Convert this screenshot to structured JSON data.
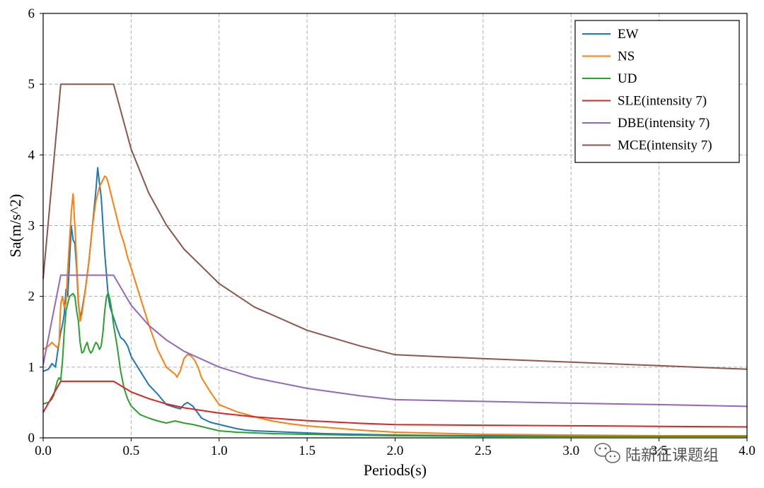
{
  "chart_data": {
    "type": "line",
    "xlabel": "Periods(s)",
    "ylabel": "Sa(m/s^2)",
    "xlim": [
      0,
      4.0
    ],
    "ylim": [
      0,
      6
    ],
    "xticks": [
      "0.0",
      "0.5",
      "1.0",
      "1.5",
      "2.0",
      "2.5",
      "3.0",
      "3.5",
      "4.0"
    ],
    "yticks": [
      "0",
      "1",
      "2",
      "3",
      "4",
      "5",
      "6"
    ],
    "grid": true,
    "legend_position": "top-right",
    "series": [
      {
        "name": "EW",
        "color": "#1f77b4",
        "x": [
          0.0,
          0.03,
          0.05,
          0.07,
          0.09,
          0.1,
          0.11,
          0.12,
          0.13,
          0.14,
          0.15,
          0.16,
          0.17,
          0.18,
          0.19,
          0.2,
          0.21,
          0.22,
          0.24,
          0.26,
          0.28,
          0.3,
          0.31,
          0.32,
          0.33,
          0.34,
          0.35,
          0.36,
          0.37,
          0.38,
          0.4,
          0.42,
          0.44,
          0.46,
          0.48,
          0.5,
          0.55,
          0.6,
          0.65,
          0.7,
          0.75,
          0.78,
          0.8,
          0.82,
          0.85,
          0.9,
          0.95,
          1.0,
          1.05,
          1.1,
          1.15,
          1.2,
          1.3,
          1.4,
          1.5,
          1.6,
          1.8,
          2.0,
          2.5,
          3.0,
          3.5,
          4.0
        ],
        "y": [
          0.94,
          0.97,
          1.05,
          1.0,
          1.35,
          1.5,
          1.6,
          1.75,
          2.1,
          2.0,
          2.5,
          3.0,
          2.8,
          2.75,
          2.4,
          1.9,
          1.7,
          1.8,
          2.1,
          2.5,
          3.0,
          3.5,
          3.82,
          3.6,
          3.4,
          3.0,
          2.6,
          2.3,
          2.0,
          1.85,
          1.7,
          1.55,
          1.42,
          1.38,
          1.3,
          1.15,
          0.95,
          0.75,
          0.62,
          0.47,
          0.43,
          0.41,
          0.47,
          0.5,
          0.45,
          0.28,
          0.22,
          0.19,
          0.16,
          0.13,
          0.11,
          0.1,
          0.09,
          0.08,
          0.07,
          0.06,
          0.05,
          0.04,
          0.03,
          0.03,
          0.02,
          0.02
        ]
      },
      {
        "name": "NS",
        "color": "#ff7f0e",
        "x": [
          0.0,
          0.03,
          0.05,
          0.07,
          0.08,
          0.09,
          0.1,
          0.11,
          0.12,
          0.13,
          0.14,
          0.15,
          0.16,
          0.17,
          0.18,
          0.19,
          0.2,
          0.21,
          0.22,
          0.24,
          0.26,
          0.28,
          0.3,
          0.32,
          0.34,
          0.35,
          0.36,
          0.37,
          0.38,
          0.4,
          0.42,
          0.44,
          0.46,
          0.48,
          0.5,
          0.55,
          0.6,
          0.65,
          0.7,
          0.75,
          0.76,
          0.78,
          0.8,
          0.82,
          0.84,
          0.86,
          0.88,
          0.9,
          0.95,
          1.0,
          1.1,
          1.2,
          1.3,
          1.4,
          1.5,
          1.6,
          1.8,
          2.0,
          2.5,
          3.0,
          3.5,
          4.0
        ],
        "y": [
          1.25,
          1.3,
          1.35,
          1.3,
          1.28,
          1.32,
          1.9,
          2.0,
          1.85,
          1.9,
          2.4,
          2.8,
          3.2,
          3.45,
          3.0,
          2.5,
          1.95,
          1.65,
          1.75,
          2.1,
          2.5,
          3.0,
          3.35,
          3.55,
          3.65,
          3.7,
          3.68,
          3.6,
          3.5,
          3.3,
          3.1,
          2.9,
          2.75,
          2.55,
          2.4,
          2.0,
          1.6,
          1.25,
          1.0,
          0.9,
          0.86,
          0.95,
          1.12,
          1.18,
          1.16,
          1.1,
          1.0,
          0.85,
          0.65,
          0.47,
          0.37,
          0.3,
          0.24,
          0.2,
          0.17,
          0.15,
          0.11,
          0.08,
          0.05,
          0.04,
          0.03,
          0.03
        ]
      },
      {
        "name": "UD",
        "color": "#2ca02c",
        "x": [
          0.0,
          0.03,
          0.05,
          0.06,
          0.07,
          0.08,
          0.09,
          0.1,
          0.11,
          0.12,
          0.13,
          0.14,
          0.15,
          0.16,
          0.17,
          0.18,
          0.19,
          0.2,
          0.21,
          0.22,
          0.23,
          0.24,
          0.25,
          0.26,
          0.27,
          0.28,
          0.29,
          0.3,
          0.31,
          0.32,
          0.33,
          0.34,
          0.35,
          0.36,
          0.37,
          0.38,
          0.39,
          0.4,
          0.42,
          0.44,
          0.46,
          0.48,
          0.5,
          0.55,
          0.6,
          0.65,
          0.7,
          0.75,
          0.8,
          0.85,
          0.9,
          1.0,
          1.1,
          1.2,
          1.3,
          1.5,
          2.0,
          2.5,
          3.0,
          3.5,
          4.0
        ],
        "y": [
          0.48,
          0.5,
          0.55,
          0.6,
          0.7,
          0.8,
          0.85,
          0.82,
          1.1,
          1.5,
          1.8,
          1.9,
          2.0,
          2.02,
          2.04,
          2.0,
          1.8,
          1.65,
          1.35,
          1.2,
          1.22,
          1.3,
          1.35,
          1.25,
          1.2,
          1.23,
          1.3,
          1.35,
          1.32,
          1.25,
          1.3,
          1.5,
          1.8,
          2.0,
          2.05,
          1.95,
          1.8,
          1.6,
          1.3,
          0.95,
          0.7,
          0.55,
          0.45,
          0.33,
          0.28,
          0.24,
          0.21,
          0.24,
          0.21,
          0.19,
          0.16,
          0.1,
          0.08,
          0.07,
          0.06,
          0.05,
          0.03,
          0.02,
          0.02,
          0.02,
          0.02
        ]
      },
      {
        "name": "SLE(intensity 7)",
        "color": "#d62728",
        "x": [
          0.0,
          0.1,
          0.4,
          0.5,
          0.6,
          0.7,
          0.8,
          1.0,
          1.2,
          1.5,
          1.8,
          2.0,
          2.5,
          3.0,
          3.5,
          4.0
        ],
        "y": [
          0.36,
          0.8,
          0.8,
          0.65,
          0.555,
          0.48,
          0.425,
          0.35,
          0.297,
          0.244,
          0.206,
          0.187,
          0.179,
          0.171,
          0.163,
          0.155
        ]
      },
      {
        "name": "DBE(intensity 7)",
        "color": "#9467bd",
        "x": [
          0.0,
          0.1,
          0.4,
          0.5,
          0.6,
          0.7,
          0.8,
          1.0,
          1.2,
          1.5,
          1.8,
          2.0,
          2.5,
          3.0,
          3.5,
          4.0
        ],
        "y": [
          1.035,
          2.3,
          2.3,
          1.875,
          1.59,
          1.385,
          1.225,
          1.0,
          0.85,
          0.7,
          0.595,
          0.54,
          0.515,
          0.49,
          0.47,
          0.445
        ]
      },
      {
        "name": "MCE(intensity 7)",
        "color": "#8c564b",
        "x": [
          0.0,
          0.1,
          0.4,
          0.5,
          0.6,
          0.7,
          0.8,
          1.0,
          1.2,
          1.5,
          1.8,
          2.0,
          2.5,
          3.0,
          3.5,
          4.0
        ],
        "y": [
          2.25,
          5.0,
          5.0,
          4.08,
          3.46,
          3.01,
          2.67,
          2.18,
          1.85,
          1.52,
          1.3,
          1.175,
          1.12,
          1.07,
          1.02,
          0.97
        ]
      }
    ]
  },
  "watermark": {
    "text": "陆新征课题组",
    "icon": "wechat-icon"
  }
}
